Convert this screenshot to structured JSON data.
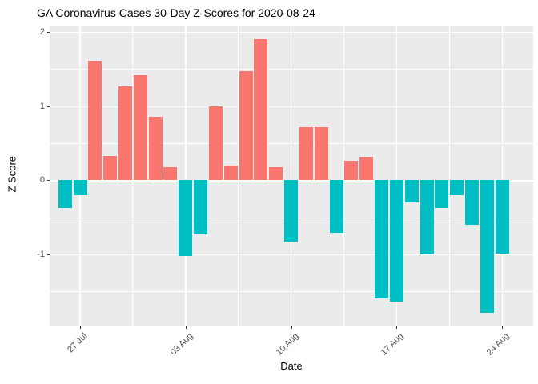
{
  "chart_data": {
    "type": "bar",
    "title": "GA Coronavirus Cases 30-Day Z-Scores for 2020-08-24",
    "xlabel": "Date",
    "ylabel": "Z Score",
    "x": [
      "2020-07-26",
      "2020-07-27",
      "2020-07-28",
      "2020-07-29",
      "2020-07-30",
      "2020-07-31",
      "2020-08-01",
      "2020-08-02",
      "2020-08-03",
      "2020-08-04",
      "2020-08-05",
      "2020-08-06",
      "2020-08-07",
      "2020-08-08",
      "2020-08-09",
      "2020-08-10",
      "2020-08-11",
      "2020-08-12",
      "2020-08-13",
      "2020-08-14",
      "2020-08-15",
      "2020-08-16",
      "2020-08-17",
      "2020-08-18",
      "2020-08-19",
      "2020-08-20",
      "2020-08-21",
      "2020-08-22",
      "2020-08-23",
      "2020-08-24"
    ],
    "values": [
      -0.37,
      -0.2,
      1.61,
      0.33,
      1.27,
      1.42,
      0.86,
      0.18,
      -1.02,
      -0.73,
      1.0,
      0.2,
      1.47,
      1.9,
      0.18,
      -0.83,
      0.72,
      0.72,
      -0.71,
      0.26,
      0.32,
      -1.6,
      -1.64,
      -0.3,
      -1.0,
      -0.37,
      -0.2,
      -0.6,
      -1.79,
      -0.99
    ],
    "x_tick_labels": [
      "27 Jul",
      "03 Aug",
      "10 Aug",
      "17 Aug",
      "24 Aug"
    ],
    "x_tick_indices": [
      1,
      8,
      15,
      22,
      29
    ],
    "x_minor_indices": [
      4.5,
      11.5,
      18.5,
      25.5
    ],
    "y_tick_labels": [
      "2",
      "1",
      "0",
      "-1"
    ],
    "y_ticks": [
      2,
      1,
      0,
      -1
    ],
    "y_minor_gridlines": [
      1.5,
      0.5,
      -0.5,
      -1.5
    ],
    "ylim": [
      -1.97,
      2.08
    ],
    "grid": true,
    "legend": false,
    "colors": {
      "positive_bar": "#F8766D",
      "negative_bar": "#00BFC4",
      "panel_background": "#EBEBEB",
      "gridline": "#FFFFFF",
      "tick_label": "#4D4D4D",
      "axis_text": "#000000"
    }
  }
}
